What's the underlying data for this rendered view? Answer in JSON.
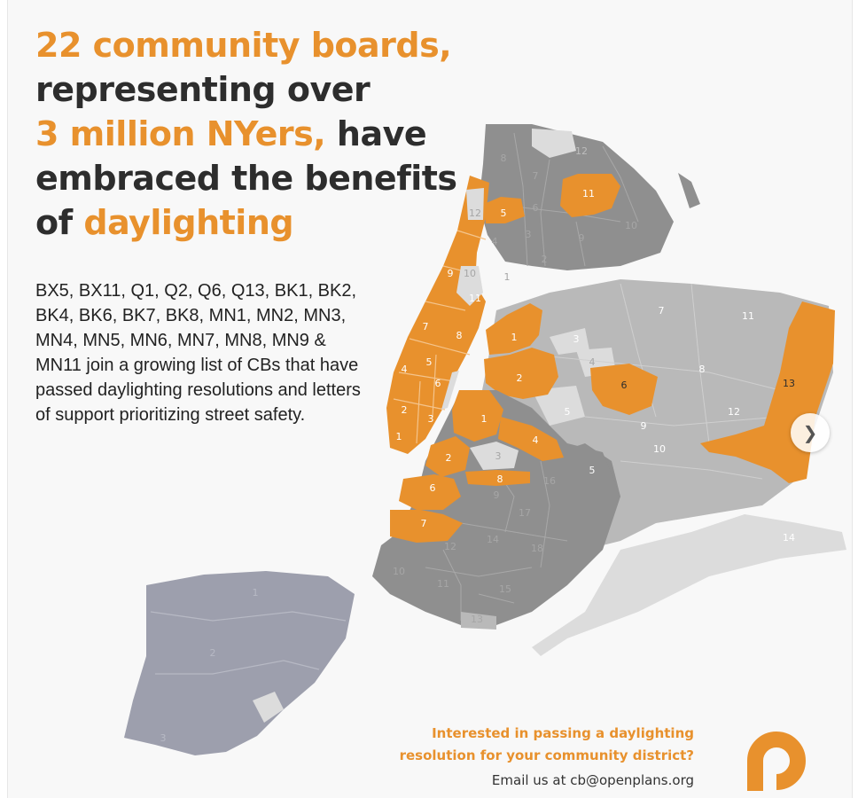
{
  "headline": {
    "line1": "22 community boards,",
    "line2": "representing over",
    "line3_highlight": "3 million NYers,",
    "line3_rest": " have",
    "line4": "embraced the benefits",
    "line5_lead": "of ",
    "line5_highlight": "daylighting"
  },
  "body": "BX5, BX11, Q1, Q2, Q6, Q13, BK1, BK2, BK4, BK6, BK7, BK8, MN1, MN2, MN3, MN4, MN5, MN6, MN7, MN8, MN9 & MN11 join a growing list of CBs that have passed daylighting resolutions and letters of support prioritizing street safety.",
  "cta": {
    "line1": "Interested in passing a daylighting",
    "line2": "resolution for your community district?",
    "line3": "Email us at cb@openplans.org"
  },
  "colors": {
    "accent": "#e8912d",
    "text": "#2d2d2d",
    "map_dark": "#8f8f8f",
    "map_medium": "#b9b9b9",
    "map_light": "#dcdcdc",
    "staten_island": "#9d9fad"
  },
  "map_labels": {
    "bronx": [
      "12",
      "8",
      "7",
      "11",
      "5",
      "6",
      "4",
      "3",
      "9",
      "10",
      "2",
      "1"
    ],
    "manhattan": [
      "12",
      "9",
      "10",
      "11",
      "7",
      "8",
      "4",
      "5",
      "6",
      "2",
      "3",
      "1"
    ],
    "queens": [
      "1",
      "2",
      "3",
      "4",
      "5",
      "6",
      "7",
      "8",
      "9",
      "10",
      "11",
      "12",
      "13",
      "14"
    ],
    "brooklyn": [
      "1",
      "2",
      "3",
      "4",
      "5",
      "6",
      "7",
      "8",
      "9",
      "10",
      "11",
      "12",
      "13",
      "14",
      "15",
      "16",
      "17",
      "18"
    ],
    "staten_island": [
      "1",
      "2",
      "3"
    ]
  },
  "icons": {
    "logo": "openplans-logo",
    "next": "chevron-right-icon"
  }
}
